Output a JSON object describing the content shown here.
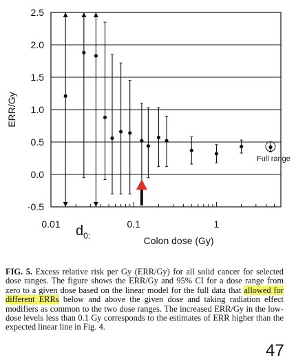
{
  "chart_data": {
    "type": "scatter",
    "xscale": "log",
    "xlim": [
      0.01,
      6
    ],
    "ylim": [
      -0.5,
      2.5
    ],
    "x_ticks": [
      0.01,
      0.1,
      1
    ],
    "x_tick_labels": [
      "0.01",
      "0.1",
      "1"
    ],
    "y_ticks": [
      -0.5,
      0.0,
      0.5,
      1.0,
      1.5,
      2.0,
      2.5
    ],
    "y_tick_labels": [
      "-0.5",
      "0.0",
      "0.5",
      "1.0",
      "1.5",
      "2.0",
      "2.5"
    ],
    "grid": "horizontal",
    "xlabel": "Colon dose (Gy)",
    "ylabel": "ERR/Gy",
    "points": [
      {
        "x": 0.015,
        "y": 1.21,
        "lo": -0.5,
        "hi": 2.5,
        "clipped_lo": true,
        "clipped_hi": true
      },
      {
        "x": 0.025,
        "y": 1.88,
        "lo": -0.05,
        "hi": 2.5,
        "clipped_hi": true
      },
      {
        "x": 0.035,
        "y": 1.83,
        "lo": -0.5,
        "hi": 2.5,
        "clipped_lo": true,
        "clipped_hi": true
      },
      {
        "x": 0.045,
        "y": 0.88,
        "lo": -0.08,
        "hi": 2.35
      },
      {
        "x": 0.055,
        "y": 0.56,
        "lo": -0.3,
        "hi": 1.85
      },
      {
        "x": 0.07,
        "y": 0.66,
        "lo": -0.3,
        "hi": 1.72
      },
      {
        "x": 0.09,
        "y": 0.64,
        "lo": -0.3,
        "hi": 1.45
      },
      {
        "x": 0.125,
        "y": 0.52,
        "lo": -0.2,
        "hi": 1.1
      },
      {
        "x": 0.15,
        "y": 0.44,
        "lo": -0.05,
        "hi": 1.03
      },
      {
        "x": 0.2,
        "y": 0.57,
        "lo": 0.12,
        "hi": 1.03
      },
      {
        "x": 0.25,
        "y": 0.52,
        "lo": 0.12,
        "hi": 0.9
      },
      {
        "x": 0.5,
        "y": 0.37,
        "lo": 0.16,
        "hi": 0.58
      },
      {
        "x": 1.0,
        "y": 0.32,
        "lo": 0.18,
        "hi": 0.46
      },
      {
        "x": 2.0,
        "y": 0.43,
        "lo": 0.33,
        "hi": 0.53
      },
      {
        "x": 4.5,
        "y": 0.42,
        "lo": 0.35,
        "hi": 0.5,
        "circled": true
      }
    ],
    "reference_lines": [
      {
        "y": 0.0,
        "style": "solid"
      }
    ],
    "annotations": [
      {
        "text": "Full range",
        "x": 4.5,
        "y": 0.25
      },
      {
        "type": "arrow",
        "color": "#d9302a",
        "x": 0.125,
        "y": -0.5
      }
    ]
  },
  "d0_label": {
    "main": "d",
    "sub": "0:"
  },
  "caption": {
    "fig_label": "FIG. 5.",
    "text_before": " Excess relative risk per Gy (ERR/Gy) for all solid cancer for selected dose ranges. The figure shows the ERR/Gy and 95% CI for a dose range from zero to a given dose based on the linear model for the full data that ",
    "highlight": "allowed for different ERRs",
    "text_after": " below and above the given dose and taking radiation effect modifiers as common to the two dose ranges. The increased ERR/Gy in the low-dose levels less than 0.1 Gy corresponds to the estimates of ERR higher than the expected linear line in Fig. 4."
  },
  "page_number": "47"
}
